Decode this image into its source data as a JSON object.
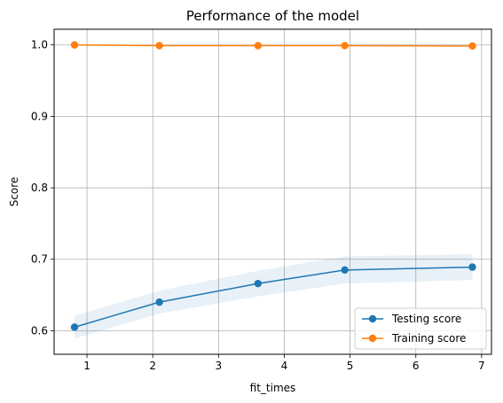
{
  "chart_data": {
    "type": "line",
    "title": "Performance of the model",
    "xlabel": "fit_times",
    "ylabel": "Score",
    "xlim": [
      0.5,
      7.15
    ],
    "ylim": [
      0.567,
      1.022
    ],
    "xticks": [
      1,
      2,
      3,
      4,
      5,
      6,
      7
    ],
    "yticks": [
      0.6,
      0.7,
      0.8,
      0.9,
      1.0
    ],
    "ytick_labels": [
      "0.6",
      "0.7",
      "0.8",
      "0.9",
      "1.0"
    ],
    "grid": true,
    "legend_position": "lower-right",
    "series": [
      {
        "name": "Testing score",
        "color": "#1f77b4",
        "x": [
          0.81,
          2.1,
          3.6,
          4.92,
          6.86
        ],
        "y": [
          0.605,
          0.64,
          0.666,
          0.685,
          0.689
        ],
        "band_lower": [
          0.589,
          0.624,
          0.648,
          0.666,
          0.671
        ],
        "band_upper": [
          0.621,
          0.656,
          0.684,
          0.704,
          0.707
        ]
      },
      {
        "name": "Training score",
        "color": "#ff7f0e",
        "x": [
          0.81,
          2.1,
          3.6,
          4.92,
          6.86
        ],
        "y": [
          1.0,
          0.999,
          0.999,
          0.999,
          0.9985
        ],
        "band_lower": [
          1.0,
          0.9985,
          0.9985,
          0.9985,
          0.998
        ],
        "band_upper": [
          1.0,
          0.9995,
          0.9995,
          0.9995,
          0.999
        ]
      }
    ]
  }
}
